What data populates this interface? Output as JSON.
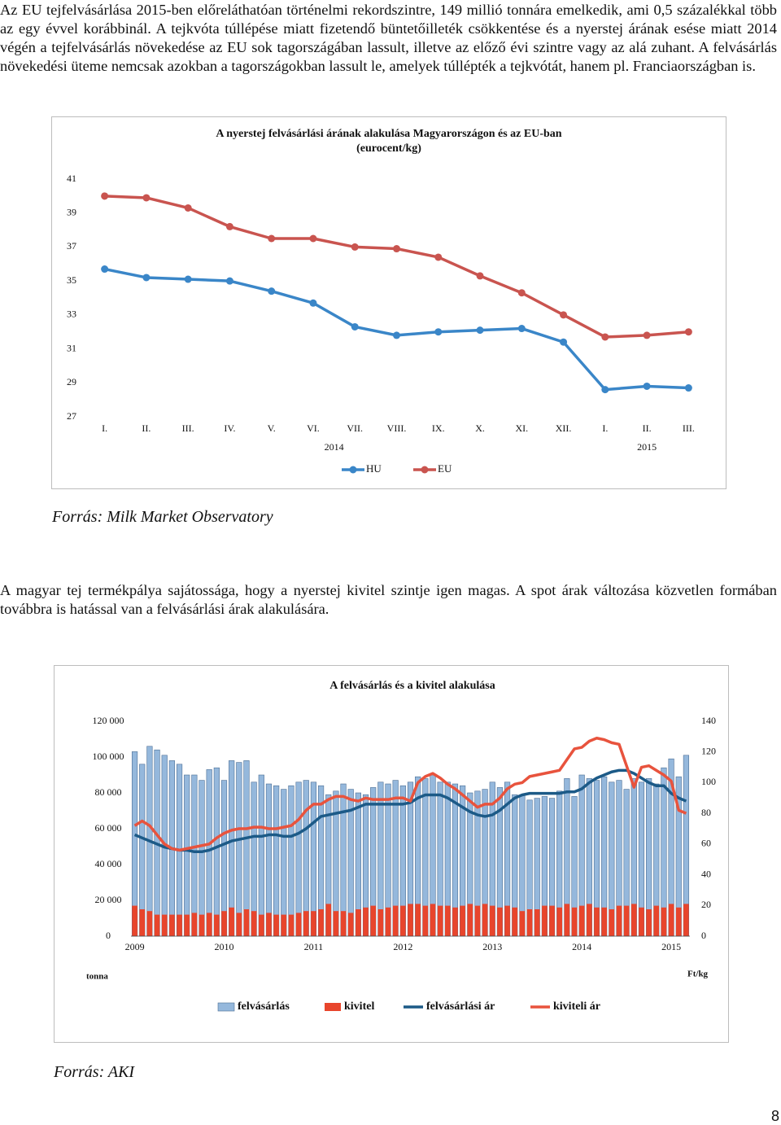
{
  "paragraphs": [
    "Az EU tejfelvásárlása 2015-ben előreláthatóan történelmi rekordszintre, 149 millió tonnára emelkedik, ami 0,5 százalékkal több az egy évvel korábbinál. A tejkvóta túllépése miatt fizetendő büntetőilleték csökkentése és a nyerstej árának esése miatt 2014 végén a tejfelvásárlás növekedése az EU sok tagországában lassult, illetve az előző évi szintre vagy az alá zuhant. A felvásárlás növekedési üteme nemcsak azokban a tagországokban lassult le, amelyek túllépték a tejkvótát, hanem pl. Franciaországban is.",
    "A magyar tej termékpálya sajátossága, hogy a nyerstej kivitel szintje igen magas. A spot árak változása közvetlen formában továbbra is hatással van a felvásárlási árak alakulására."
  ],
  "sources": [
    "Forrás: Milk Market Observatory",
    "Forrás: AKI"
  ],
  "page_number": "8",
  "chart_data": [
    {
      "type": "line",
      "title": "A nyerstej felvásárlási árának alakulása Magyarországon és az EU-ban",
      "subtitle": "(eurocent/kg)",
      "categories": [
        "I.",
        "II.",
        "III.",
        "IV.",
        "V.",
        "VI.",
        "VII.",
        "VIII.",
        "IX.",
        "X.",
        "XI.",
        "XII.",
        "I.",
        "II.",
        "III."
      ],
      "year_labels": [
        "2014",
        "2015"
      ],
      "series": [
        {
          "name": "HU",
          "color": "#3a86c8",
          "values": [
            35.7,
            35.2,
            35.1,
            35.0,
            34.4,
            33.7,
            32.3,
            31.8,
            32.0,
            32.1,
            32.2,
            31.4,
            28.6,
            28.8,
            28.7
          ]
        },
        {
          "name": "EU",
          "color": "#c9544f",
          "values": [
            40.0,
            39.9,
            39.3,
            38.2,
            37.5,
            37.5,
            37.0,
            36.9,
            36.4,
            35.3,
            34.3,
            33.0,
            31.7,
            31.8,
            32.0
          ]
        }
      ],
      "ylim": [
        27,
        41
      ],
      "yticks": [
        27,
        29,
        31,
        33,
        35,
        37,
        39,
        41
      ],
      "grid": false,
      "legend": "bottom"
    },
    {
      "type": "bar-line",
      "title": "A felvásárlás és a kivitel alakulása",
      "categories": [
        "2009",
        null,
        null,
        null,
        null,
        null,
        null,
        null,
        null,
        null,
        null,
        null,
        "2010",
        null,
        null,
        null,
        null,
        null,
        null,
        null,
        null,
        null,
        null,
        null,
        "2011",
        null,
        null,
        null,
        null,
        null,
        null,
        null,
        null,
        null,
        null,
        null,
        "2012",
        null,
        null,
        null,
        null,
        null,
        null,
        null,
        null,
        null,
        null,
        null,
        "2013",
        null,
        null,
        null,
        null,
        null,
        null,
        null,
        null,
        null,
        null,
        null,
        "2014",
        null,
        null,
        null,
        null,
        null,
        null,
        null,
        null,
        null,
        null,
        null,
        "2015",
        null,
        null
      ],
      "series": [
        {
          "name": "felvásárlás",
          "type": "bar",
          "color": "#95b8dc",
          "values": [
            103000,
            96000,
            106000,
            104000,
            101000,
            98000,
            96000,
            90000,
            90000,
            87000,
            93000,
            94000,
            87000,
            98000,
            97000,
            98000,
            86000,
            90000,
            85000,
            84000,
            82000,
            84000,
            86000,
            87000,
            86000,
            84000,
            79000,
            81000,
            85000,
            82000,
            80000,
            79000,
            83000,
            86000,
            85000,
            87000,
            84000,
            86000,
            89000,
            88000,
            90000,
            86000,
            86000,
            85000,
            84000,
            80000,
            81000,
            82000,
            86000,
            83000,
            86000,
            79000,
            79000,
            76000,
            77000,
            78000,
            77000,
            81000,
            88000,
            78000,
            90000,
            88000,
            87000,
            89000,
            86000,
            87000,
            82000,
            88000,
            86000,
            88000,
            85000,
            94000,
            99000,
            89000,
            101000
          ]
        },
        {
          "name": "kivitel",
          "type": "bar",
          "color": "#e8452c",
          "values": [
            17000,
            15000,
            14000,
            12000,
            12000,
            12000,
            12000,
            12000,
            13000,
            12000,
            13000,
            12000,
            14000,
            16000,
            13000,
            15000,
            14000,
            12000,
            13000,
            12000,
            12000,
            12000,
            13000,
            14000,
            14000,
            15000,
            18000,
            14000,
            14000,
            13000,
            15000,
            16000,
            17000,
            15000,
            16000,
            17000,
            17000,
            18000,
            18000,
            17000,
            18000,
            17000,
            17000,
            16000,
            17000,
            18000,
            17000,
            18000,
            17000,
            16000,
            17000,
            16000,
            14000,
            15000,
            15000,
            17000,
            17000,
            16000,
            18000,
            16000,
            17000,
            18000,
            16000,
            16000,
            15000,
            17000,
            17000,
            18000,
            16000,
            15000,
            17000,
            16000,
            18000,
            16000,
            18000
          ]
        },
        {
          "name": "felvásárlási ár",
          "type": "line",
          "axis": "y2",
          "color": "#1c5a87",
          "values": [
            66,
            64,
            62,
            60,
            58,
            57,
            56,
            56,
            55,
            55,
            56,
            58,
            60,
            62,
            63,
            64,
            65,
            65,
            66,
            66,
            65,
            65,
            67,
            70,
            74,
            78,
            79,
            80,
            81,
            82,
            84,
            86,
            86,
            86,
            86,
            86,
            86,
            87,
            90,
            92,
            92,
            92,
            90,
            87,
            84,
            81,
            79,
            78,
            79,
            82,
            86,
            90,
            92,
            93,
            93,
            93,
            93,
            93,
            94,
            94,
            96,
            100,
            103,
            105,
            107,
            108,
            108,
            106,
            103,
            100,
            98,
            98,
            93,
            90,
            88
          ]
        },
        {
          "name": "kiviteli ár",
          "type": "line",
          "axis": "y2",
          "color": "#e8533d",
          "values": [
            72,
            75,
            72,
            66,
            60,
            57,
            56,
            57,
            58,
            59,
            60,
            64,
            67,
            69,
            70,
            70,
            71,
            71,
            70,
            70,
            71,
            72,
            76,
            82,
            86,
            86,
            89,
            91,
            91,
            89,
            88,
            90,
            89,
            89,
            89,
            90,
            90,
            88,
            100,
            104,
            106,
            103,
            99,
            96,
            92,
            88,
            84,
            86,
            86,
            90,
            96,
            99,
            100,
            104,
            105,
            106,
            107,
            108,
            115,
            122,
            123,
            127,
            129,
            128,
            126,
            125,
            111,
            97,
            110,
            111,
            108,
            105,
            101,
            82,
            80
          ]
        }
      ],
      "ylim": [
        0,
        120000
      ],
      "yticks": [
        0,
        {
          "value": 20000,
          "label": "20 000"
        },
        {
          "value": 40000,
          "label": "40 000"
        },
        {
          "value": 60000,
          "label": "60 000"
        },
        {
          "value": 80000,
          "label": "80 000"
        },
        {
          "value": 100000,
          "label": "100 000"
        },
        {
          "value": 120000,
          "label": "120 000"
        }
      ],
      "y2lim": [
        0,
        140
      ],
      "y2ticks": [
        0,
        20,
        40,
        60,
        80,
        100,
        120,
        140
      ],
      "ylabel": "tonna",
      "y2label": "Ft/kg",
      "grid": false,
      "legend": "bottom"
    }
  ]
}
